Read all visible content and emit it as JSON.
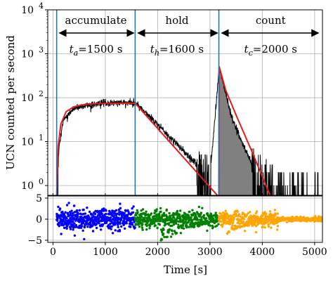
{
  "chart_data": [
    {
      "type": "line",
      "panel": "main",
      "xlim": [
        -100,
        5150
      ],
      "ylim": [
        0.6,
        10000
      ],
      "yscale": "log",
      "ylabel": "UCN counted per second",
      "grid": true,
      "y_ticks": [
        {
          "value": 1,
          "base": "10",
          "exp": "0"
        },
        {
          "value": 10,
          "base": "10",
          "exp": "1"
        },
        {
          "value": 100,
          "base": "10",
          "exp": "2"
        },
        {
          "value": 1000,
          "base": "10",
          "exp": "3"
        },
        {
          "value": 10000,
          "base": "10",
          "exp": "4"
        }
      ],
      "phase_boundaries": [
        70,
        1570,
        3170
      ],
      "phases": [
        {
          "label": "accumulate",
          "eq_var": "t",
          "eq_sub": "a",
          "eq_val": "=1500 s",
          "x0": 70,
          "x1": 1570
        },
        {
          "label": "hold",
          "eq_var": "t",
          "eq_sub": "h",
          "eq_val": "=1600 s",
          "x0": 1570,
          "x1": 3170
        },
        {
          "label": "count",
          "eq_var": "t",
          "eq_sub": "c",
          "eq_val": "=2000 s",
          "x0": 3170,
          "x1": 5150
        }
      ],
      "data_key_points": [
        {
          "x": 70,
          "y": 0.6
        },
        {
          "x": 120,
          "y": 8
        },
        {
          "x": 200,
          "y": 30
        },
        {
          "x": 400,
          "y": 58
        },
        {
          "x": 800,
          "y": 72
        },
        {
          "x": 1560,
          "y": 80
        },
        {
          "x": 2000,
          "y": 25
        },
        {
          "x": 2500,
          "y": 6
        },
        {
          "x": 3000,
          "y": 1.5
        },
        {
          "x": 3175,
          "y": 500
        },
        {
          "x": 3400,
          "y": 40
        },
        {
          "x": 3800,
          "y": 3
        },
        {
          "x": 4200,
          "y": 1
        }
      ],
      "series": [
        {
          "name": "counts",
          "color": "#000000",
          "fill_count_phase": "#808080"
        },
        {
          "name": "fit",
          "color": "#e41a1c",
          "points": [
            {
              "x": 70,
              "y": 0.6
            },
            {
              "x": 100,
              "y": 8
            },
            {
              "x": 150,
              "y": 25
            },
            {
              "x": 250,
              "y": 48
            },
            {
              "x": 400,
              "y": 62
            },
            {
              "x": 600,
              "y": 70
            },
            {
              "x": 900,
              "y": 74
            },
            {
              "x": 1570,
              "y": 75
            },
            {
              "x": 3170,
              "y": 0.55
            },
            {
              "x": 3175,
              "y": 520
            },
            {
              "x": 3300,
              "y": 150
            },
            {
              "x": 3500,
              "y": 40
            },
            {
              "x": 3800,
              "y": 6
            },
            {
              "x": 4150,
              "y": 0.6
            }
          ]
        }
      ]
    },
    {
      "type": "scatter",
      "panel": "residuals",
      "xlim": [
        -100,
        5150
      ],
      "ylim": [
        -5.5,
        5.5
      ],
      "xlabel": "Time [s]",
      "grid": true,
      "x_ticks": [
        0,
        1000,
        2000,
        3000,
        4000,
        5000
      ],
      "y_ticks": [
        -5,
        0,
        5
      ],
      "series": [
        {
          "name": "accumulate residuals",
          "color": "#0000ff",
          "x_range": [
            70,
            1570
          ],
          "spread": 1.3
        },
        {
          "name": "hold residuals",
          "color": "#008000",
          "x_range": [
            1570,
            3170
          ],
          "spread": 1.0
        },
        {
          "name": "count residuals",
          "color": "#ffa500",
          "x_range": [
            3170,
            5150
          ],
          "spread": 0.9
        }
      ]
    }
  ]
}
